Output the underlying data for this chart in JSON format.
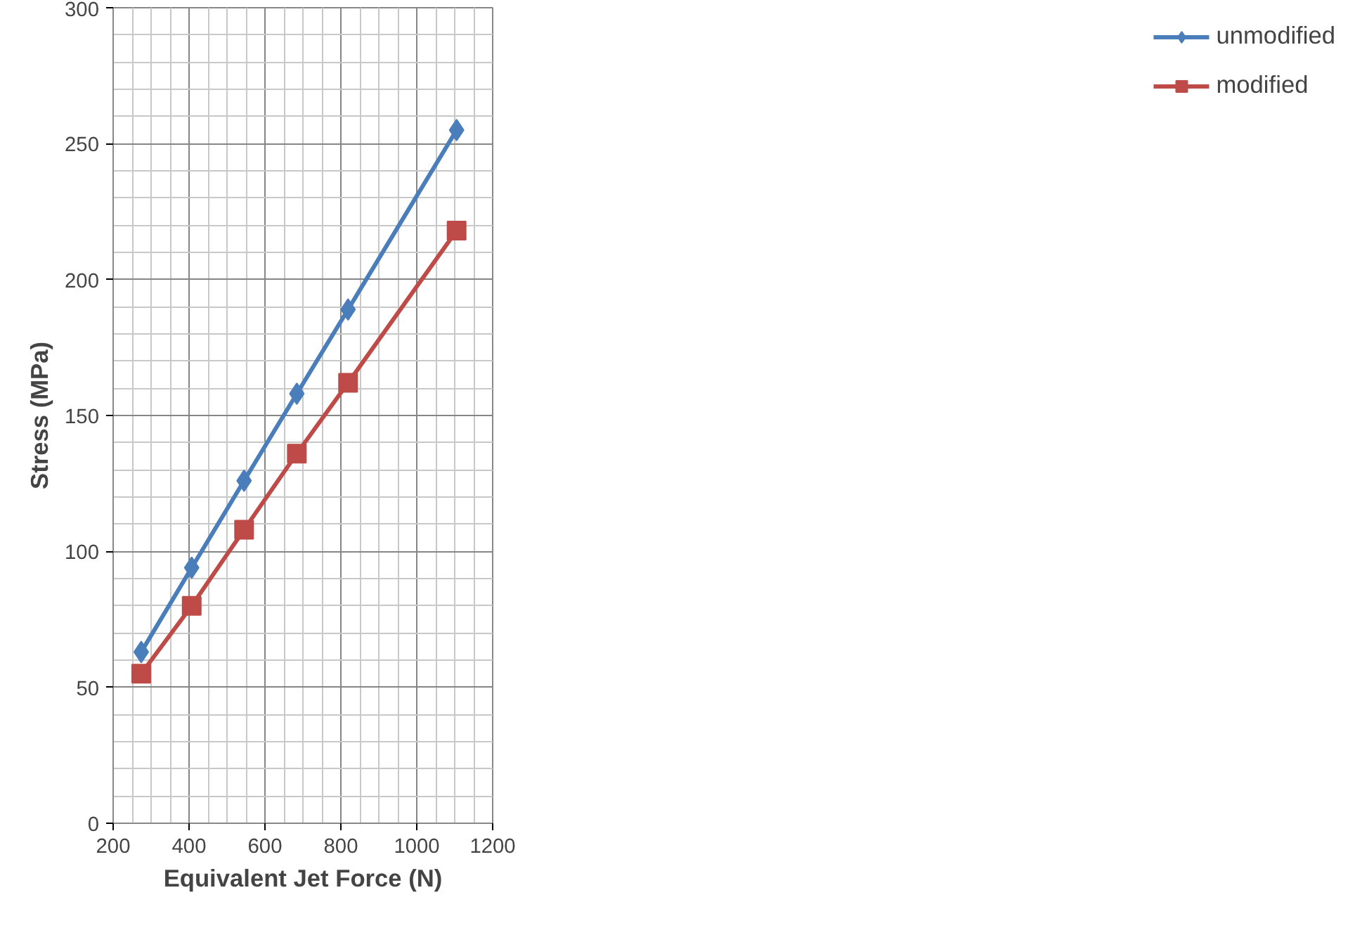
{
  "chart_data": {
    "type": "line",
    "xlabel": "Equivalent Jet Force (N)",
    "ylabel": "Stress (MPa)",
    "xlim": [
      200,
      1200
    ],
    "ylim": [
      0,
      300
    ],
    "xticks": [
      200,
      400,
      600,
      800,
      1000,
      1200
    ],
    "yticks": [
      0,
      50,
      100,
      150,
      200,
      250,
      300
    ],
    "grid": true,
    "legend": "right",
    "line_style": "solid",
    "series": [
      {
        "name": "unmodified",
        "color": "#4a7ebb",
        "marker": "diamond",
        "x": [
          274,
          407,
          545,
          684,
          819,
          1105
        ],
        "values": [
          63,
          94,
          126,
          158,
          189,
          255
        ]
      },
      {
        "name": "modified",
        "color": "#be4b48",
        "marker": "square",
        "x": [
          274,
          407,
          545,
          684,
          819,
          1105
        ],
        "values": [
          55,
          80,
          108,
          136,
          162,
          218
        ]
      }
    ]
  }
}
